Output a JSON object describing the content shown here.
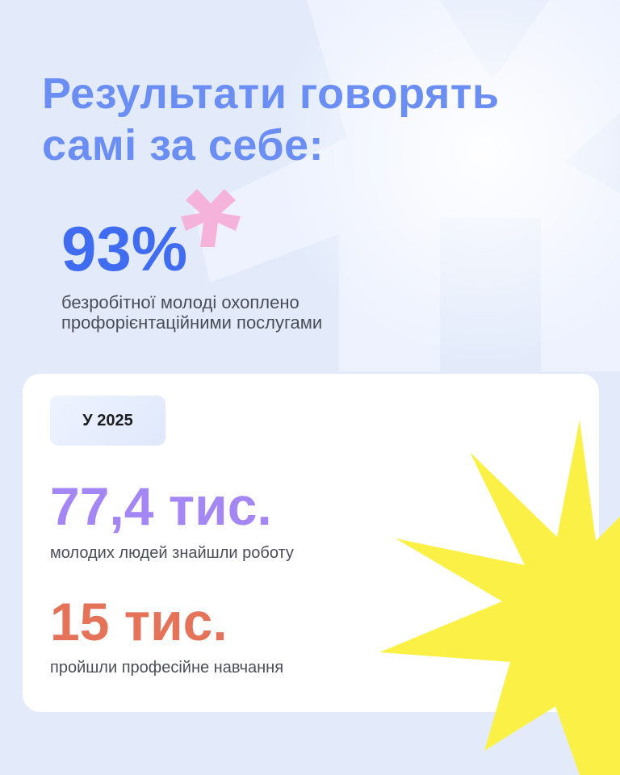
{
  "heading": {
    "line1": "Результати говорять",
    "line2": "самі за себе:"
  },
  "highlight": {
    "value": "93%",
    "description_line1": "безробітної молоді охоплено",
    "description_line2": "профорієнтаційними послугами"
  },
  "card": {
    "badge": "У 2025",
    "stats": [
      {
        "value": "77,4 тис.",
        "description": "молодих людей знайшли роботу",
        "color": "#a487f5"
      },
      {
        "value": "15 тис.",
        "description": "пройшли професійне навчання",
        "color": "#e4735a"
      }
    ]
  },
  "colors": {
    "background": "#e3ebfb",
    "title": "#6b8ef5",
    "highlight": "#3f6cf1",
    "asterisk": "#f5b3dc",
    "star": "#fbf146"
  }
}
